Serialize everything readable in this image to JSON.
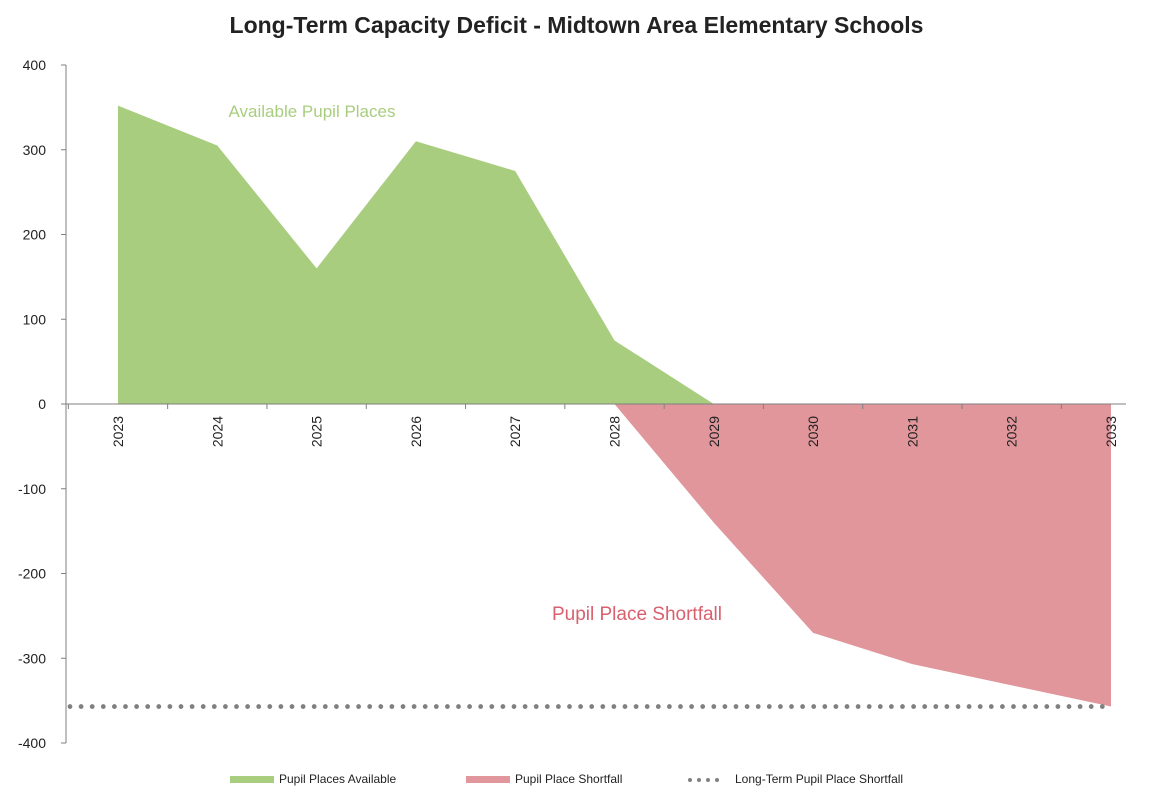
{
  "chart_data": {
    "type": "area",
    "title": "Long-Term Capacity Deficit - Midtown Area Elementary Schools",
    "xlabel": "",
    "ylabel": "",
    "categories": [
      "2023",
      "2024",
      "2025",
      "2026",
      "2027",
      "2028",
      "2029",
      "2030",
      "2031",
      "2032",
      "2033"
    ],
    "ylim": [
      -400,
      400
    ],
    "yticks": [
      400,
      300,
      200,
      100,
      0,
      -100,
      -200,
      -300,
      -400
    ],
    "yticks_labels": [
      "400",
      "300",
      "200",
      "100",
      "0",
      "-100",
      "-200",
      "-300",
      "-400"
    ],
    "grid": false,
    "series": [
      {
        "name": "Pupil Places Available",
        "color": "#a9cd7e",
        "x": [
          "2023",
          "2024",
          "2025",
          "2026",
          "2027",
          "2028",
          "2029"
        ],
        "values": [
          352,
          305,
          160,
          310,
          275,
          75,
          0
        ]
      },
      {
        "name": "Pupil Place Shortfall",
        "color": "#e0969b",
        "x": [
          "2028",
          "2029",
          "2030",
          "2031",
          "2032",
          "2033"
        ],
        "values": [
          0,
          -140,
          -270,
          -307,
          -332,
          -357
        ]
      },
      {
        "name": "Long-Term Pupil Place Shortfall",
        "color": "#808080",
        "style": "dotted",
        "values": [
          -357,
          -357,
          -357,
          -357,
          -357,
          -357,
          -357,
          -357,
          -357,
          -357,
          -357
        ]
      }
    ],
    "annotations": [
      {
        "text": "Available Pupil Places",
        "color": "#a9cd7e"
      },
      {
        "text": "Pupil Place Shortfall",
        "color": "#d9606e"
      }
    ],
    "legend_position": "bottom"
  }
}
